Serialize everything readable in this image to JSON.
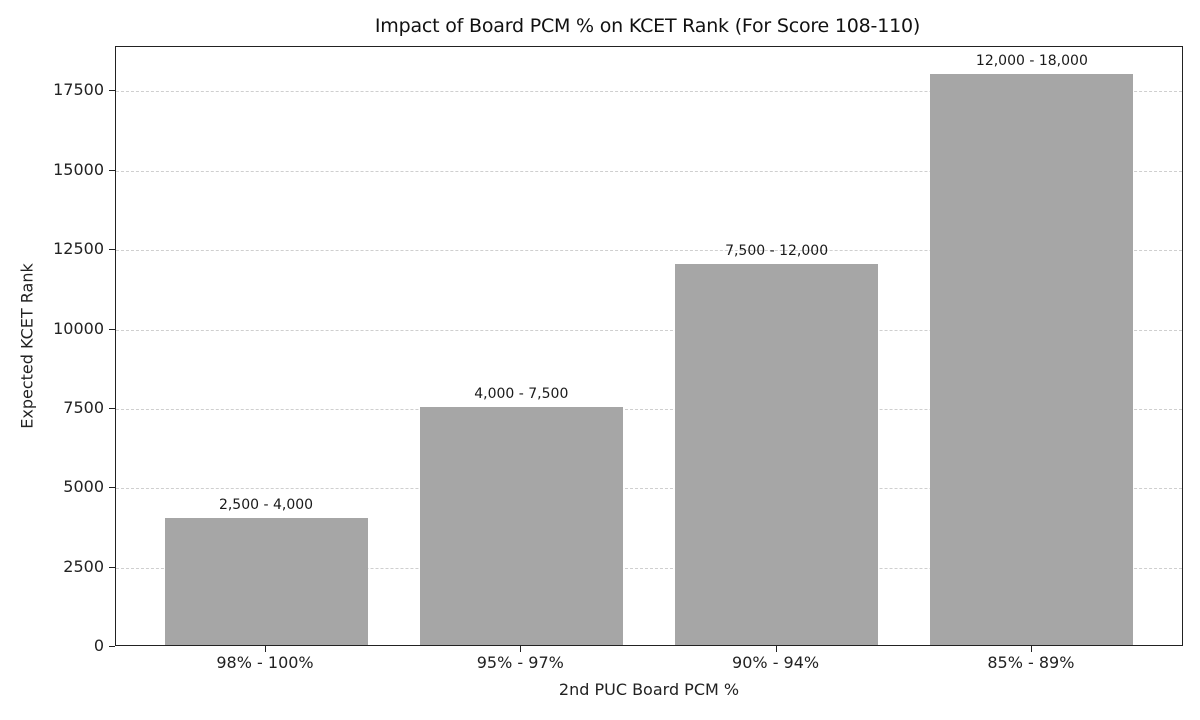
{
  "chart_data": {
    "type": "bar",
    "title": "Impact of Board PCM % on KCET Rank (For Score 108-110)",
    "xlabel": "2nd PUC Board PCM %",
    "ylabel": "Expected KCET Rank",
    "categories": [
      "98% - 100%",
      "95% - 97%",
      "90% - 94%",
      "85% - 89%"
    ],
    "values": [
      4000,
      7500,
      12000,
      18000
    ],
    "range_low": [
      2500,
      4000,
      7500,
      12000
    ],
    "bar_labels": [
      "2,500 - 4,000",
      "4,000 - 7,500",
      "7,500 - 12,000",
      "12,000 - 18,000"
    ],
    "yticks": [
      0,
      2500,
      5000,
      7500,
      10000,
      12500,
      15000,
      17500
    ],
    "ytick_labels": [
      "0",
      "2500",
      "5000",
      "7500",
      "10000",
      "12500",
      "15000",
      "17500"
    ],
    "ylim": [
      0,
      18900
    ],
    "grid": "y-dashed",
    "legend": null,
    "bar_color": "#a6a6a6"
  }
}
